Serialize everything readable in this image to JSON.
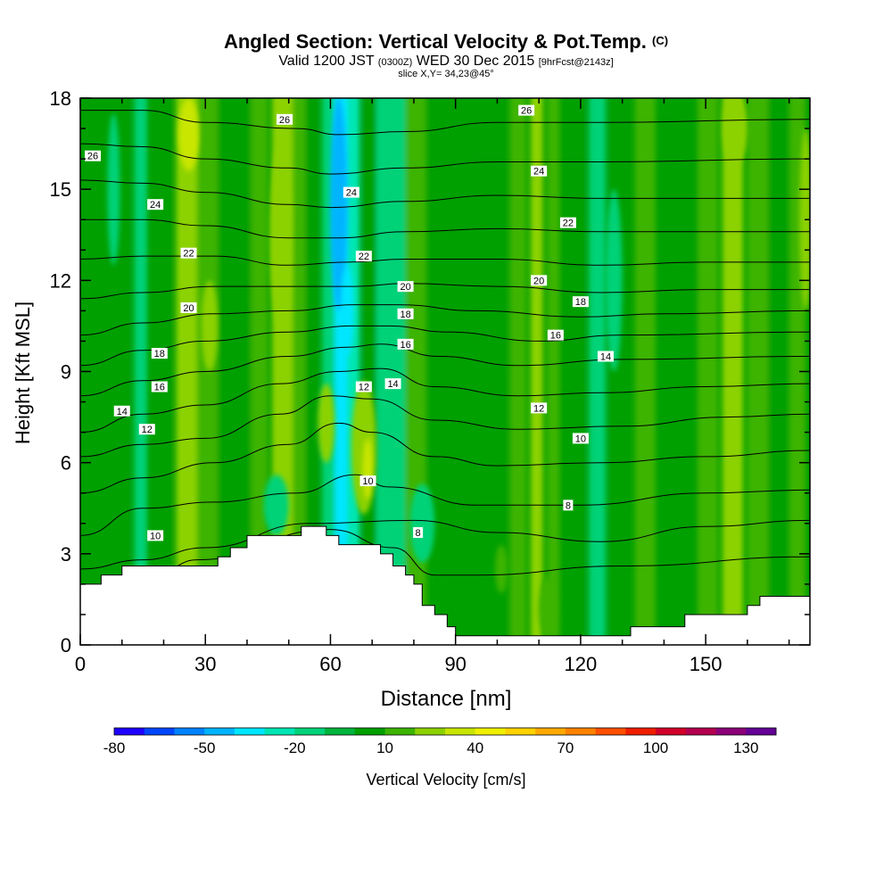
{
  "header": {
    "title": "Angled Section: Vertical Velocity & Pot.Temp.",
    "copyright": "(C)",
    "valid_time": "Valid 1200 JST",
    "utc_time": "(0300Z)",
    "date": "WED 30 Dec 2015",
    "forecast": "[9hrFcst@2143z]",
    "slice": "slice X,Y= 34,23@45°"
  },
  "chart_data": {
    "type": "heatmap",
    "title": "Angled Section: Vertical Velocity & Pot.Temp.",
    "xlabel": "Distance [nm]",
    "ylabel": "Height [Kft MSL]",
    "xlim": [
      0,
      175
    ],
    "ylim": [
      0,
      18
    ],
    "x_ticks": [
      "0",
      "30",
      "60",
      "90",
      "120",
      "150"
    ],
    "y_ticks": [
      "0",
      "3",
      "6",
      "9",
      "12",
      "15",
      "18"
    ],
    "colorbar": {
      "label": "Vertical Velocity [cm/s]",
      "ticks": [
        "-80",
        "-50",
        "-20",
        "10",
        "40",
        "70",
        "100",
        "130"
      ],
      "min": -80,
      "step": 10,
      "colors": [
        "#1e00ff",
        "#0046ff",
        "#0082ff",
        "#00b4ff",
        "#00e6ff",
        "#00e6b4",
        "#00d278",
        "#00b43c",
        "#00a000",
        "#3cb400",
        "#8cd200",
        "#c8e600",
        "#f0f000",
        "#ffd200",
        "#ffaa00",
        "#ff8200",
        "#ff5000",
        "#f01e00",
        "#d20028",
        "#b40050",
        "#8c0078",
        "#640096"
      ]
    },
    "terrain_kft": [
      [
        0,
        2.0
      ],
      [
        5,
        2.3
      ],
      [
        10,
        2.6
      ],
      [
        15,
        2.6
      ],
      [
        30,
        2.6
      ],
      [
        33,
        2.9
      ],
      [
        36,
        3.2
      ],
      [
        40,
        3.6
      ],
      [
        52,
        3.6
      ],
      [
        53,
        3.9
      ],
      [
        58,
        3.9
      ],
      [
        59,
        3.6
      ],
      [
        62,
        3.3
      ],
      [
        70,
        3.3
      ],
      [
        72,
        3.0
      ],
      [
        75,
        2.6
      ],
      [
        78,
        2.3
      ],
      [
        80,
        2.0
      ],
      [
        82,
        1.3
      ],
      [
        85,
        1.0
      ],
      [
        88,
        0.6
      ],
      [
        90,
        0.3
      ],
      [
        130,
        0.3
      ],
      [
        132,
        0.6
      ],
      [
        143,
        0.6
      ],
      [
        145,
        1.0
      ],
      [
        158,
        1.0
      ],
      [
        160,
        1.3
      ],
      [
        163,
        1.6
      ],
      [
        175,
        1.6
      ]
    ],
    "wind_bands": [
      {
        "x": 1,
        "w": 2,
        "v": 5
      },
      {
        "x": 8,
        "w": 4,
        "v": 0
      },
      {
        "x": 13,
        "w": 3,
        "v": -12
      },
      {
        "x": 18,
        "w": 4,
        "v": 0
      },
      {
        "x": 23,
        "w": 5,
        "v": 22
      },
      {
        "x": 28,
        "w": 5,
        "v": 12
      },
      {
        "x": 33,
        "w": 3,
        "v": 0
      },
      {
        "x": 38,
        "w": 3,
        "v": 0
      },
      {
        "x": 41,
        "w": 4,
        "v": 12
      },
      {
        "x": 46,
        "w": 5,
        "v": 25
      },
      {
        "x": 51,
        "w": 3,
        "v": 12
      },
      {
        "x": 54,
        "w": 3,
        "v": 0
      },
      {
        "x": 58,
        "w": 3,
        "v": -15
      },
      {
        "x": 61,
        "w": 4,
        "v": -40
      },
      {
        "x": 64,
        "w": 3,
        "v": -30
      },
      {
        "x": 68,
        "w": 3,
        "v": 0
      },
      {
        "x": 71,
        "w": 3,
        "v": -12
      },
      {
        "x": 74,
        "w": 4,
        "v": -20
      },
      {
        "x": 78,
        "w": 5,
        "v": 12
      },
      {
        "x": 84,
        "w": 5,
        "v": 0
      },
      {
        "x": 90,
        "w": 6,
        "v": 5
      },
      {
        "x": 97,
        "w": 5,
        "v": 0
      },
      {
        "x": 103,
        "w": 4,
        "v": 12
      },
      {
        "x": 108,
        "w": 3,
        "v": 20
      },
      {
        "x": 112,
        "w": 3,
        "v": 12
      },
      {
        "x": 117,
        "w": 4,
        "v": 0
      },
      {
        "x": 122,
        "w": 4,
        "v": -12
      },
      {
        "x": 127,
        "w": 5,
        "v": 5
      },
      {
        "x": 133,
        "w": 5,
        "v": 12
      },
      {
        "x": 140,
        "w": 6,
        "v": 0
      },
      {
        "x": 148,
        "w": 5,
        "v": 12
      },
      {
        "x": 154,
        "w": 5,
        "v": 22
      },
      {
        "x": 160,
        "w": 5,
        "v": 12
      },
      {
        "x": 165,
        "w": 4,
        "v": 0
      },
      {
        "x": 170,
        "w": 4,
        "v": 12
      }
    ],
    "blobs": [
      {
        "x": 62,
        "y": 14.5,
        "rx": 2.0,
        "ry": 3.5,
        "v": -45
      },
      {
        "x": 64,
        "y": 11.0,
        "rx": 1.5,
        "ry": 1.5,
        "v": -35
      },
      {
        "x": 26,
        "y": 16.8,
        "rx": 2.5,
        "ry": 1.2,
        "v": 30
      },
      {
        "x": 48,
        "y": 13.5,
        "rx": 2.5,
        "ry": 3.0,
        "v": 28
      },
      {
        "x": 68,
        "y": 6.5,
        "rx": 3.0,
        "ry": 2.2,
        "v": 25
      },
      {
        "x": 69,
        "y": 5.8,
        "rx": 1.2,
        "ry": 1.0,
        "v": 38
      },
      {
        "x": 59,
        "y": 7.3,
        "rx": 2.0,
        "ry": 1.3,
        "v": 22
      },
      {
        "x": 31,
        "y": 10.5,
        "rx": 2.0,
        "ry": 1.5,
        "v": 22
      },
      {
        "x": 157,
        "y": 17.0,
        "rx": 3.0,
        "ry": 1.2,
        "v": 28
      },
      {
        "x": 47,
        "y": 4.6,
        "rx": 3.0,
        "ry": 1.0,
        "v": -15
      },
      {
        "x": 82,
        "y": 4.0,
        "rx": 3.0,
        "ry": 1.3,
        "v": -15
      },
      {
        "x": 8,
        "y": 15.0,
        "rx": 1.5,
        "ry": 2.5,
        "v": -12
      },
      {
        "x": 128,
        "y": 12.0,
        "rx": 2.0,
        "ry": 3.0,
        "v": -15
      },
      {
        "x": 174,
        "y": 14.0,
        "rx": 1.5,
        "ry": 3.0,
        "v": 25
      },
      {
        "x": 112,
        "y": 1.2,
        "rx": 2.0,
        "ry": 1.0,
        "v": 15
      },
      {
        "x": 101,
        "y": 2.5,
        "rx": 1.5,
        "ry": 0.8,
        "v": 15
      }
    ],
    "contours": [
      {
        "pts": [
          [
            0,
            1.6
          ],
          [
            10,
            1.8
          ],
          [
            20,
            2.5
          ],
          [
            28,
            2.8
          ],
          [
            60,
            3.8
          ],
          [
            75,
            3.2
          ],
          [
            85,
            2.3
          ],
          [
            95,
            2.3
          ],
          [
            130,
            2.6
          ],
          [
            175,
            2.9
          ]
        ]
      },
      {
        "pts": [
          [
            0,
            2.5
          ],
          [
            15,
            2.8
          ],
          [
            30,
            3.2
          ],
          [
            55,
            4.0
          ],
          [
            80,
            4.1
          ],
          [
            100,
            3.7
          ],
          [
            125,
            3.4
          ],
          [
            150,
            3.9
          ],
          [
            175,
            4.1
          ]
        ]
      },
      {
        "pts": [
          [
            0,
            3.6
          ],
          [
            15,
            4.5
          ],
          [
            32,
            4.7
          ],
          [
            52,
            5.0
          ],
          [
            66,
            5.6
          ],
          [
            74,
            5.2
          ],
          [
            95,
            4.6
          ],
          [
            120,
            4.6
          ],
          [
            150,
            5.0
          ],
          [
            175,
            5.1
          ]
        ]
      },
      {
        "pts": [
          [
            0,
            5.0
          ],
          [
            15,
            5.5
          ],
          [
            32,
            6.0
          ],
          [
            50,
            6.6
          ],
          [
            62,
            7.3
          ],
          [
            70,
            7.0
          ],
          [
            85,
            6.2
          ],
          [
            100,
            5.9
          ],
          [
            125,
            6.0
          ],
          [
            150,
            6.2
          ],
          [
            175,
            6.4
          ]
        ]
      },
      {
        "pts": [
          [
            0,
            6.2
          ],
          [
            15,
            6.6
          ],
          [
            30,
            6.8
          ],
          [
            48,
            7.6
          ],
          [
            60,
            8.2
          ],
          [
            70,
            8.1
          ],
          [
            85,
            7.4
          ],
          [
            105,
            7.1
          ],
          [
            130,
            7.2
          ],
          [
            155,
            7.5
          ],
          [
            175,
            7.6
          ]
        ]
      },
      {
        "pts": [
          [
            0,
            7.0
          ],
          [
            15,
            7.6
          ],
          [
            30,
            7.9
          ],
          [
            48,
            8.6
          ],
          [
            62,
            9.0
          ],
          [
            72,
            9.1
          ],
          [
            85,
            8.5
          ],
          [
            105,
            8.2
          ],
          [
            125,
            8.3
          ],
          [
            150,
            8.5
          ],
          [
            175,
            8.6
          ]
        ]
      },
      {
        "pts": [
          [
            0,
            8.2
          ],
          [
            15,
            8.7
          ],
          [
            30,
            9.0
          ],
          [
            50,
            9.5
          ],
          [
            64,
            9.8
          ],
          [
            72,
            9.9
          ],
          [
            86,
            9.5
          ],
          [
            105,
            9.2
          ],
          [
            130,
            9.4
          ],
          [
            175,
            9.5
          ]
        ]
      },
      {
        "pts": [
          [
            0,
            9.2
          ],
          [
            15,
            9.7
          ],
          [
            30,
            10.0
          ],
          [
            50,
            10.3
          ],
          [
            65,
            10.5
          ],
          [
            74,
            10.5
          ],
          [
            88,
            10.3
          ],
          [
            110,
            10.0
          ],
          [
            130,
            10.2
          ],
          [
            175,
            10.3
          ]
        ]
      },
      {
        "pts": [
          [
            0,
            10.2
          ],
          [
            15,
            10.6
          ],
          [
            32,
            10.9
          ],
          [
            50,
            11.0
          ],
          [
            66,
            11.2
          ],
          [
            76,
            11.2
          ],
          [
            95,
            11.0
          ],
          [
            120,
            10.8
          ],
          [
            140,
            10.9
          ],
          [
            175,
            11.0
          ]
        ]
      },
      {
        "pts": [
          [
            0,
            11.4
          ],
          [
            15,
            11.6
          ],
          [
            32,
            11.8
          ],
          [
            50,
            11.8
          ],
          [
            66,
            11.8
          ],
          [
            78,
            11.9
          ],
          [
            100,
            11.8
          ],
          [
            125,
            11.6
          ],
          [
            150,
            11.7
          ],
          [
            175,
            11.7
          ]
        ]
      },
      {
        "pts": [
          [
            0,
            12.7
          ],
          [
            15,
            12.8
          ],
          [
            32,
            12.8
          ],
          [
            50,
            12.5
          ],
          [
            64,
            12.6
          ],
          [
            78,
            12.7
          ],
          [
            100,
            12.7
          ],
          [
            125,
            12.5
          ],
          [
            150,
            12.6
          ],
          [
            175,
            12.6
          ]
        ]
      },
      {
        "pts": [
          [
            0,
            14.0
          ],
          [
            15,
            14.0
          ],
          [
            30,
            13.8
          ],
          [
            50,
            13.4
          ],
          [
            62,
            13.4
          ],
          [
            78,
            13.6
          ],
          [
            100,
            13.7
          ],
          [
            125,
            13.6
          ],
          [
            175,
            13.6
          ]
        ]
      },
      {
        "pts": [
          [
            0,
            15.3
          ],
          [
            15,
            15.2
          ],
          [
            30,
            14.9
          ],
          [
            50,
            14.5
          ],
          [
            60,
            14.4
          ],
          [
            78,
            14.6
          ],
          [
            100,
            14.8
          ],
          [
            125,
            14.7
          ],
          [
            175,
            14.7
          ]
        ]
      },
      {
        "pts": [
          [
            0,
            16.5
          ],
          [
            15,
            16.4
          ],
          [
            30,
            16.0
          ],
          [
            50,
            15.7
          ],
          [
            60,
            15.5
          ],
          [
            78,
            15.7
          ],
          [
            100,
            15.9
          ],
          [
            125,
            15.9
          ],
          [
            175,
            16.0
          ]
        ]
      },
      {
        "pts": [
          [
            0,
            17.6
          ],
          [
            15,
            17.6
          ],
          [
            30,
            17.2
          ],
          [
            52,
            17.0
          ],
          [
            62,
            16.8
          ],
          [
            78,
            16.9
          ],
          [
            100,
            17.2
          ],
          [
            125,
            17.2
          ],
          [
            175,
            17.3
          ]
        ]
      }
    ],
    "contour_labels": [
      {
        "text": "26",
        "x": 3,
        "y": 16.1
      },
      {
        "text": "24",
        "x": 18,
        "y": 14.5
      },
      {
        "text": "22",
        "x": 26,
        "y": 12.9
      },
      {
        "text": "20",
        "x": 26,
        "y": 11.1
      },
      {
        "text": "18",
        "x": 19,
        "y": 9.6
      },
      {
        "text": "16",
        "x": 19,
        "y": 8.5
      },
      {
        "text": "14",
        "x": 10,
        "y": 7.7
      },
      {
        "text": "12",
        "x": 16,
        "y": 7.1
      },
      {
        "text": "10",
        "x": 18,
        "y": 3.6
      },
      {
        "text": "26",
        "x": 49,
        "y": 17.3
      },
      {
        "text": "24",
        "x": 65,
        "y": 14.9
      },
      {
        "text": "22",
        "x": 68,
        "y": 12.8
      },
      {
        "text": "20",
        "x": 78,
        "y": 11.8
      },
      {
        "text": "18",
        "x": 78,
        "y": 10.9
      },
      {
        "text": "16",
        "x": 78,
        "y": 9.9
      },
      {
        "text": "12",
        "x": 68,
        "y": 8.5
      },
      {
        "text": "14",
        "x": 75,
        "y": 8.6
      },
      {
        "text": "10",
        "x": 69,
        "y": 5.4
      },
      {
        "text": "8",
        "x": 81,
        "y": 3.7
      },
      {
        "text": "26",
        "x": 107,
        "y": 17.6
      },
      {
        "text": "24",
        "x": 110,
        "y": 15.6
      },
      {
        "text": "22",
        "x": 117,
        "y": 13.9
      },
      {
        "text": "20",
        "x": 110,
        "y": 12.0
      },
      {
        "text": "18",
        "x": 120,
        "y": 11.3
      },
      {
        "text": "16",
        "x": 114,
        "y": 10.2
      },
      {
        "text": "14",
        "x": 126,
        "y": 9.5
      },
      {
        "text": "12",
        "x": 110,
        "y": 7.8
      },
      {
        "text": "10",
        "x": 120,
        "y": 6.8
      },
      {
        "text": "8",
        "x": 117,
        "y": 4.6
      }
    ]
  }
}
